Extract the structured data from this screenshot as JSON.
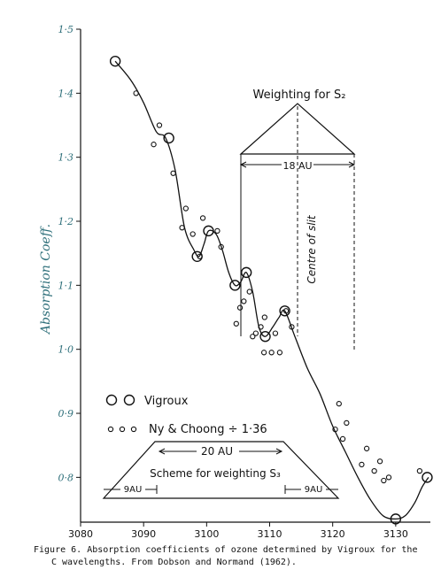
{
  "chart_data": {
    "type": "scatter",
    "ylabel": "Absorption Coeff.",
    "xlim": [
      3080,
      3135.5
    ],
    "ylim": [
      0.73,
      1.5
    ],
    "x_ticks": [
      3080,
      3090,
      3100,
      3110,
      3120,
      3130
    ],
    "y_ticks": [
      0.8,
      0.9,
      1.0,
      1.1,
      1.2,
      1.3,
      1.4,
      1.5
    ],
    "x_tick_labels": [
      "3080",
      "3090",
      "3100",
      "3110",
      "3120",
      "3130"
    ],
    "y_tick_labels": [
      "0·8",
      "0·9",
      "1·0",
      "1·1",
      "1·2",
      "1·3",
      "1·4",
      "1·5"
    ],
    "grid": false,
    "series": [
      {
        "name": "Vigroux",
        "marker": "large-open-circle",
        "x": [
          3085.5,
          3094.0,
          3098.5,
          3100.3,
          3104.5,
          3106.3,
          3109.3,
          3112.4,
          3130.0,
          3135.0
        ],
        "y": [
          1.45,
          1.33,
          1.145,
          1.185,
          1.1,
          1.12,
          1.02,
          1.06,
          0.735,
          0.8
        ]
      },
      {
        "name": "Ny & Choong ÷ 1·36",
        "marker": "small-open-circle",
        "x": [
          3088.8,
          3091.6,
          3092.5,
          3094.7,
          3096.1,
          3096.7,
          3097.8,
          3098.9,
          3099.4,
          3101.7,
          3102.3,
          3104.7,
          3105.3,
          3105.9,
          3106.8,
          3107.3,
          3107.8,
          3108.6,
          3109.1,
          3109.2,
          3110.3,
          3110.9,
          3111.6,
          3112.6,
          3113.5,
          3120.4,
          3121.0,
          3121.6,
          3122.2,
          3124.6,
          3125.4,
          3126.6,
          3127.5,
          3128.1,
          3128.9,
          3133.8
        ],
        "y": [
          1.4,
          1.32,
          1.35,
          1.275,
          1.19,
          1.22,
          1.18,
          1.145,
          1.205,
          1.185,
          1.16,
          1.04,
          1.065,
          1.075,
          1.09,
          1.02,
          1.025,
          1.035,
          0.995,
          1.05,
          0.995,
          1.025,
          0.995,
          1.06,
          1.035,
          0.875,
          0.915,
          0.86,
          0.885,
          0.82,
          0.845,
          0.81,
          0.825,
          0.795,
          0.8,
          0.81
        ]
      },
      {
        "name": "smooth curve",
        "marker": "line",
        "x": [
          3085.5,
          3088,
          3090,
          3092,
          3093.5,
          3095,
          3096.5,
          3098,
          3098.8,
          3099.6,
          3100.3,
          3101.5,
          3102.5,
          3103.5,
          3104.5,
          3105.4,
          3106.3,
          3107.3,
          3108.3,
          3109.3,
          3110.5,
          3111.5,
          3112.4,
          3114,
          3116,
          3118,
          3120,
          3122,
          3124,
          3126,
          3128,
          3130,
          3131.5,
          3133,
          3134.2,
          3135.2
        ],
        "y": [
          1.45,
          1.42,
          1.385,
          1.34,
          1.33,
          1.28,
          1.19,
          1.155,
          1.145,
          1.165,
          1.185,
          1.18,
          1.155,
          1.12,
          1.1,
          1.105,
          1.12,
          1.09,
          1.035,
          1.02,
          1.035,
          1.05,
          1.06,
          1.02,
          0.97,
          0.93,
          0.88,
          0.84,
          0.8,
          0.765,
          0.74,
          0.735,
          0.74,
          0.76,
          0.785,
          0.8
        ]
      }
    ],
    "annotations": {
      "weighting_s2": "Weighting for S₂",
      "s2_width": "18 AU",
      "centre_of_slit": "Centre of slit",
      "legend_vigroux": "Vigroux",
      "legend_ny": "Ny & Choong ÷ 1·36",
      "s3_top_width": "20 AU",
      "scheme_s3": "Scheme for weighting S₃",
      "s3_left_slope": "9AU",
      "s3_right_slope": "9AU"
    },
    "caption_lines": [
      "Figure 6. Absorption coefficients of ozone determined by Vigroux for the",
      "C wavelengths. From Dobson and Normand (1962)."
    ]
  },
  "colors": {
    "ink": "#111111",
    "axis_label": "#2e6f7a",
    "background": "#ffffff"
  }
}
